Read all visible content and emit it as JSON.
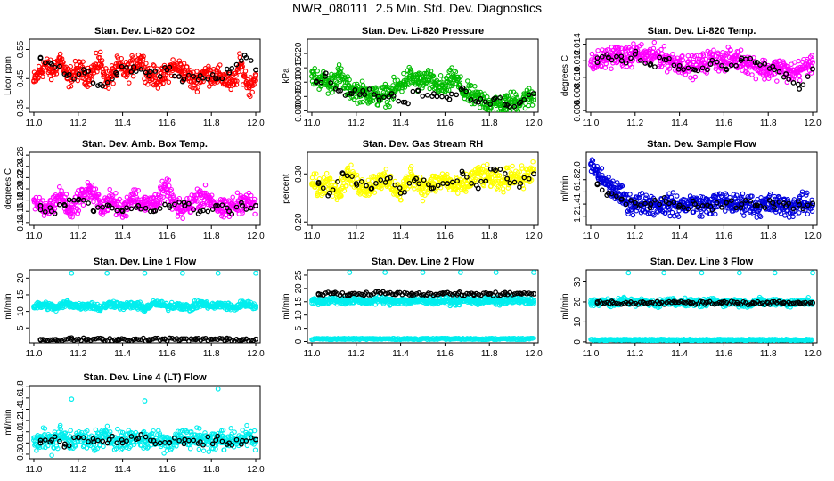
{
  "title": "NWR_080111  2.5 Min. Std. Dev. Diagnostics",
  "colors": {
    "secondary": "#000000"
  },
  "chart_data": [
    {
      "type": "scatter",
      "title": "Stan. Dev. Li-820 CO2",
      "ylabel": "Licor ppm",
      "xlim": [
        10.98,
        12.02
      ],
      "ylim": [
        0.335,
        0.585
      ],
      "xticks": [
        "11.0",
        "11.2",
        "11.4",
        "11.6",
        "11.8",
        "12.0"
      ],
      "yticks": [
        "0.35",
        "0.45",
        "0.55"
      ],
      "color": "#ff0000",
      "x": [
        11.0,
        11.05,
        11.08,
        11.12,
        11.15,
        11.2,
        11.25,
        11.3,
        11.33,
        11.38,
        11.42,
        11.48,
        11.52,
        11.58,
        11.62,
        11.67,
        11.72,
        11.77,
        11.82,
        11.86,
        11.9,
        11.93,
        11.97,
        12.0
      ],
      "y": [
        0.44,
        0.5,
        0.47,
        0.52,
        0.45,
        0.48,
        0.46,
        0.51,
        0.44,
        0.49,
        0.47,
        0.52,
        0.46,
        0.45,
        0.49,
        0.48,
        0.44,
        0.47,
        0.46,
        0.45,
        0.43,
        0.5,
        0.42,
        0.46
      ],
      "black_x": [
        11.03,
        11.08,
        11.15,
        11.23,
        11.3,
        11.37,
        11.45,
        11.52,
        11.6,
        11.67,
        11.75,
        11.82,
        11.88,
        11.95,
        12.0
      ],
      "black_y": [
        0.52,
        0.5,
        0.46,
        0.47,
        0.43,
        0.47,
        0.49,
        0.46,
        0.48,
        0.44,
        0.46,
        0.45,
        0.47,
        0.53,
        0.48
      ]
    },
    {
      "type": "scatter",
      "title": "Stan. Dev. Li-820 Pressure",
      "ylabel": "kPa",
      "xlim": [
        10.98,
        12.02
      ],
      "ylim": [
        -0.0005,
        0.025
      ],
      "xticks": [
        "11.0",
        "11.2",
        "11.4",
        "11.6",
        "11.8",
        "12.0"
      ],
      "yticks": [
        "0.000",
        "0.005",
        "0.010",
        "0.015",
        "0.020"
      ],
      "color": "#00bb00",
      "x": [
        11.0,
        11.04,
        11.08,
        11.12,
        11.16,
        11.2,
        11.25,
        11.3,
        11.35,
        11.4,
        11.44,
        11.48,
        11.52,
        11.56,
        11.6,
        11.64,
        11.68,
        11.72,
        11.76,
        11.8,
        11.85,
        11.9,
        11.95,
        12.0
      ],
      "y": [
        0.012,
        0.011,
        0.009,
        0.013,
        0.008,
        0.007,
        0.006,
        0.005,
        0.006,
        0.009,
        0.012,
        0.01,
        0.011,
        0.009,
        0.008,
        0.012,
        0.007,
        0.005,
        0.004,
        0.003,
        0.002,
        0.003,
        0.004,
        0.005
      ],
      "black_x": [
        11.02,
        11.06,
        11.12,
        11.18,
        11.23,
        11.3,
        11.36,
        11.42,
        11.48,
        11.55,
        11.62,
        11.68,
        11.75,
        11.82,
        11.88,
        11.94,
        12.0
      ],
      "black_y": [
        0.01,
        0.012,
        0.007,
        0.006,
        0.007,
        0.005,
        0.006,
        0.003,
        0.007,
        0.006,
        0.004,
        0.008,
        0.003,
        0.004,
        0.002,
        0.003,
        0.006
      ]
    },
    {
      "type": "scatter",
      "title": "Stan. Dev. Li-820 Temp.",
      "ylabel": "degrees C",
      "xlim": [
        10.98,
        12.02
      ],
      "ylim": [
        0.0058,
        0.0146
      ],
      "xticks": [
        "11.0",
        "11.2",
        "11.4",
        "11.6",
        "11.8",
        "12.0"
      ],
      "yticks": [
        "0.006",
        "0.008",
        "0.010",
        "0.012",
        "0.014"
      ],
      "color": "#ff00ff",
      "x": [
        11.0,
        11.04,
        11.08,
        11.12,
        11.16,
        11.2,
        11.25,
        11.3,
        11.35,
        11.4,
        11.45,
        11.5,
        11.55,
        11.6,
        11.65,
        11.7,
        11.75,
        11.8,
        11.85,
        11.9,
        11.95,
        12.0
      ],
      "y": [
        0.0115,
        0.012,
        0.0125,
        0.0128,
        0.0122,
        0.013,
        0.0125,
        0.0127,
        0.012,
        0.0118,
        0.0112,
        0.0116,
        0.0122,
        0.012,
        0.0123,
        0.0118,
        0.0113,
        0.0108,
        0.0112,
        0.0105,
        0.011,
        0.0118
      ],
      "black_x": [
        11.03,
        11.08,
        11.14,
        11.2,
        11.27,
        11.34,
        11.4,
        11.47,
        11.54,
        11.61,
        11.68,
        11.75,
        11.82,
        11.88,
        11.94,
        12.0
      ],
      "black_y": [
        0.0118,
        0.0124,
        0.012,
        0.0128,
        0.0116,
        0.0121,
        0.0114,
        0.0109,
        0.0116,
        0.011,
        0.0123,
        0.0118,
        0.0113,
        0.0104,
        0.0086,
        0.011
      ]
    },
    {
      "type": "scatter",
      "title": "Stan. Dev. Amb. Box Temp.",
      "ylabel": "degrees C",
      "xlim": [
        10.98,
        12.02
      ],
      "ylim": [
        0.135,
        0.265
      ],
      "xticks": [
        "11.0",
        "11.2",
        "11.4",
        "11.6",
        "11.8",
        "12.0"
      ],
      "yticks": [
        "0.14",
        "0.16",
        "0.18",
        "0.20",
        "0.22",
        "0.24",
        "0.26"
      ],
      "color": "#ff00ff",
      "x": [
        11.0,
        11.04,
        11.08,
        11.12,
        11.16,
        11.2,
        11.25,
        11.3,
        11.35,
        11.4,
        11.45,
        11.5,
        11.55,
        11.6,
        11.65,
        11.7,
        11.75,
        11.8,
        11.85,
        11.9,
        11.95,
        12.0
      ],
      "y": [
        0.18,
        0.16,
        0.17,
        0.19,
        0.16,
        0.18,
        0.2,
        0.17,
        0.18,
        0.16,
        0.19,
        0.17,
        0.18,
        0.2,
        0.16,
        0.17,
        0.19,
        0.18,
        0.16,
        0.17,
        0.18,
        0.17
      ],
      "black_x": [
        11.03,
        11.08,
        11.14,
        11.2,
        11.27,
        11.34,
        11.4,
        11.47,
        11.54,
        11.61,
        11.68,
        11.75,
        11.82,
        11.88,
        11.94,
        12.0
      ],
      "black_y": [
        0.17,
        0.16,
        0.17,
        0.18,
        0.16,
        0.17,
        0.16,
        0.17,
        0.16,
        0.17,
        0.17,
        0.16,
        0.17,
        0.16,
        0.17,
        0.17
      ]
    },
    {
      "type": "scatter",
      "title": "Stan. Dev. Gas Stream RH",
      "ylabel": "percent",
      "xlim": [
        10.98,
        12.02
      ],
      "ylim": [
        0.193,
        0.345
      ],
      "xticks": [
        "11.0",
        "11.2",
        "11.4",
        "11.6",
        "11.8",
        "12.0"
      ],
      "yticks": [
        "0.20",
        "0.30"
      ],
      "color": "#ffff00",
      "x": [
        11.0,
        11.04,
        11.08,
        11.12,
        11.16,
        11.2,
        11.25,
        11.3,
        11.35,
        11.4,
        11.45,
        11.5,
        11.55,
        11.6,
        11.65,
        11.7,
        11.75,
        11.8,
        11.85,
        11.9,
        11.95,
        12.0
      ],
      "y": [
        0.28,
        0.27,
        0.29,
        0.26,
        0.3,
        0.28,
        0.27,
        0.29,
        0.28,
        0.26,
        0.3,
        0.27,
        0.28,
        0.29,
        0.27,
        0.28,
        0.3,
        0.29,
        0.28,
        0.3,
        0.29,
        0.31
      ],
      "black_x": [
        11.03,
        11.08,
        11.14,
        11.2,
        11.27,
        11.34,
        11.4,
        11.47,
        11.54,
        11.61,
        11.68,
        11.75,
        11.82,
        11.88,
        11.94,
        12.0
      ],
      "black_y": [
        0.28,
        0.26,
        0.3,
        0.28,
        0.27,
        0.29,
        0.26,
        0.29,
        0.27,
        0.28,
        0.3,
        0.27,
        0.31,
        0.29,
        0.28,
        0.3
      ]
    },
    {
      "type": "scatter",
      "title": "Stan. Dev. Sample Flow",
      "ylabel": "ml/min",
      "xlim": [
        10.98,
        12.02
      ],
      "ylim": [
        1.05,
        2.25
      ],
      "xticks": [
        "11.0",
        "11.2",
        "11.4",
        "11.6",
        "11.8",
        "12.0"
      ],
      "yticks": [
        "1.2",
        "1.4",
        "1.6",
        "1.8",
        "2.0"
      ],
      "color": "#0000dd",
      "x": [
        11.0,
        11.02,
        11.04,
        11.06,
        11.08,
        11.1,
        11.13,
        11.16,
        11.2,
        11.25,
        11.3,
        11.35,
        11.4,
        11.45,
        11.5,
        11.55,
        11.6,
        11.65,
        11.7,
        11.75,
        11.8,
        11.85,
        11.9,
        11.95,
        12.0
      ],
      "y": [
        2.05,
        1.95,
        1.85,
        1.8,
        1.7,
        1.65,
        1.55,
        1.45,
        1.4,
        1.42,
        1.38,
        1.4,
        1.36,
        1.42,
        1.38,
        1.4,
        1.45,
        1.38,
        1.42,
        1.36,
        1.4,
        1.38,
        1.35,
        1.4,
        1.38
      ],
      "black_x": [
        11.03,
        11.08,
        11.14,
        11.2,
        11.27,
        11.34,
        11.4,
        11.47,
        11.54,
        11.61,
        11.68,
        11.75,
        11.82,
        11.88,
        11.94,
        12.0
      ],
      "black_y": [
        1.72,
        1.58,
        1.48,
        1.42,
        1.4,
        1.44,
        1.38,
        1.4,
        1.36,
        1.42,
        1.4,
        1.38,
        1.42,
        1.37,
        1.39,
        1.41
      ]
    },
    {
      "type": "scatter",
      "title": "Stan. Dev. Line 1 Flow",
      "ylabel": "ml/min",
      "xlim": [
        10.98,
        12.02
      ],
      "ylim": [
        0.5,
        22.5
      ],
      "xticks": [
        "11.0",
        "11.2",
        "11.4",
        "11.6",
        "11.8",
        "12.0"
      ],
      "yticks": [
        "5",
        "10",
        "15",
        "20"
      ],
      "color": "#00eeee",
      "x": [
        11.0,
        11.05,
        11.1,
        11.15,
        11.2,
        11.25,
        11.3,
        11.35,
        11.4,
        11.45,
        11.5,
        11.55,
        11.6,
        11.65,
        11.7,
        11.75,
        11.8,
        11.85,
        11.9,
        11.95,
        12.0
      ],
      "y": [
        11.5,
        12.0,
        11.0,
        12.5,
        11.5,
        12.0,
        11.0,
        12.5,
        11.5,
        12.0,
        11.0,
        12.5,
        11.5,
        12.0,
        11.0,
        12.5,
        11.5,
        12.0,
        11.0,
        12.5,
        11.5
      ],
      "outliers_x": [
        11.17,
        11.33,
        11.5,
        11.67,
        11.83,
        12.0
      ],
      "outliers_y": [
        21.5,
        21.5,
        21.5,
        21.5,
        21.5,
        21.5
      ],
      "black_x": [
        11.03,
        11.1,
        11.17,
        11.24,
        11.31,
        11.38,
        11.45,
        11.52,
        11.59,
        11.66,
        11.73,
        11.8,
        11.87,
        11.94,
        12.0
      ],
      "black_y": [
        1.5,
        1.5,
        1.6,
        1.5,
        1.5,
        1.6,
        1.5,
        1.5,
        1.6,
        1.5,
        1.5,
        1.6,
        1.5,
        1.5,
        1.6
      ]
    },
    {
      "type": "scatter",
      "title": "Stan. Dev. Line 2 Flow",
      "ylabel": "ml/min",
      "xlim": [
        10.98,
        12.02
      ],
      "ylim": [
        -0.5,
        27
      ],
      "xticks": [
        "11.0",
        "11.2",
        "11.4",
        "11.6",
        "11.8",
        "12.0"
      ],
      "yticks": [
        "0",
        "5",
        "10",
        "15",
        "20",
        "25"
      ],
      "color": "#00eeee",
      "x": [
        11.0,
        11.05,
        11.1,
        11.15,
        11.2,
        11.25,
        11.3,
        11.35,
        11.4,
        11.45,
        11.5,
        11.55,
        11.6,
        11.65,
        11.7,
        11.75,
        11.8,
        11.85,
        11.9,
        11.95,
        12.0
      ],
      "y": [
        15.5,
        15.0,
        15.8,
        15.2,
        15.5,
        15.0,
        15.8,
        15.2,
        15.5,
        15.0,
        15.8,
        15.2,
        15.5,
        15.0,
        15.8,
        15.2,
        15.5,
        15.0,
        15.8,
        15.2,
        15.5
      ],
      "outliers_x": [
        11.17,
        11.33,
        11.5,
        11.67,
        11.83,
        12.0
      ],
      "outliers_y": [
        26.0,
        26.0,
        26.0,
        26.0,
        26.0,
        26.0
      ],
      "low_band": 1.0,
      "black_x": [
        11.03,
        11.1,
        11.17,
        11.24,
        11.31,
        11.38,
        11.45,
        11.52,
        11.59,
        11.66,
        11.73,
        11.8,
        11.87,
        11.94,
        12.0
      ],
      "black_y": [
        18.0,
        18.2,
        17.8,
        18.0,
        18.3,
        17.9,
        18.1,
        17.7,
        18.0,
        18.2,
        17.8,
        18.0,
        17.9,
        18.1,
        18.0
      ]
    },
    {
      "type": "scatter",
      "title": "Stan. Dev. Line 3 Flow",
      "ylabel": "ml/min",
      "xlim": [
        10.98,
        12.02
      ],
      "ylim": [
        -0.5,
        36
      ],
      "xticks": [
        "11.0",
        "11.2",
        "11.4",
        "11.6",
        "11.8",
        "12.0"
      ],
      "yticks": [
        "0",
        "10",
        "20",
        "30"
      ],
      "color": "#00eeee",
      "x": [
        11.0,
        11.05,
        11.1,
        11.15,
        11.2,
        11.25,
        11.3,
        11.35,
        11.4,
        11.45,
        11.5,
        11.55,
        11.6,
        11.65,
        11.7,
        11.75,
        11.8,
        11.85,
        11.9,
        11.95,
        12.0
      ],
      "y": [
        19.5,
        20.5,
        19.0,
        21.0,
        19.5,
        20.0,
        19.0,
        20.5,
        19.5,
        20.0,
        19.0,
        20.5,
        19.5,
        20.0,
        19.0,
        20.5,
        19.5,
        20.0,
        19.0,
        20.5,
        19.5
      ],
      "outliers_x": [
        11.17,
        11.33,
        11.5,
        11.67,
        11.83,
        12.0
      ],
      "outliers_y": [
        34.5,
        34.5,
        34.5,
        34.5,
        34.5,
        34.5
      ],
      "low_band": 1.0,
      "black_x": [
        11.03,
        11.1,
        11.17,
        11.24,
        11.31,
        11.38,
        11.45,
        11.52,
        11.59,
        11.66,
        11.73,
        11.8,
        11.87,
        11.94,
        12.0
      ],
      "black_y": [
        19.5,
        19.8,
        19.2,
        19.6,
        19.4,
        19.8,
        19.3,
        19.6,
        19.5,
        19.7,
        19.2,
        19.6,
        19.4,
        19.5,
        19.6
      ]
    },
    {
      "type": "scatter",
      "title": "Stan. Dev. Line 4 (LT) Flow",
      "ylabel": "ml/min",
      "xlim": [
        10.98,
        12.02
      ],
      "ylim": [
        0.52,
        1.82
      ],
      "xticks": [
        "11.0",
        "11.2",
        "11.4",
        "11.6",
        "11.8",
        "12.0"
      ],
      "yticks": [
        "0.6",
        "0.8",
        "1.0",
        "1.2",
        "1.4",
        "1.6",
        "1.8"
      ],
      "color": "#00eeee",
      "x": [
        11.0,
        11.04,
        11.08,
        11.12,
        11.16,
        11.2,
        11.25,
        11.3,
        11.35,
        11.4,
        11.45,
        11.5,
        11.55,
        11.6,
        11.65,
        11.7,
        11.75,
        11.8,
        11.85,
        11.9,
        11.95,
        12.0
      ],
      "y": [
        0.85,
        0.9,
        0.8,
        0.95,
        0.85,
        0.9,
        0.8,
        0.88,
        0.92,
        0.82,
        0.9,
        0.85,
        0.88,
        0.8,
        0.92,
        0.86,
        0.9,
        0.82,
        0.88,
        0.85,
        0.9,
        0.84
      ],
      "outliers_x": [
        11.17,
        11.5,
        11.83
      ],
      "outliers_y": [
        1.58,
        1.55,
        1.76
      ],
      "black_x": [
        11.03,
        11.08,
        11.14,
        11.2,
        11.27,
        11.34,
        11.4,
        11.47,
        11.54,
        11.61,
        11.68,
        11.75,
        11.82,
        11.88,
        11.94,
        12.0
      ],
      "black_y": [
        0.8,
        0.85,
        0.78,
        0.9,
        0.82,
        0.86,
        0.8,
        0.88,
        0.84,
        0.8,
        0.86,
        0.82,
        0.85,
        0.8,
        0.84,
        0.86
      ]
    }
  ]
}
